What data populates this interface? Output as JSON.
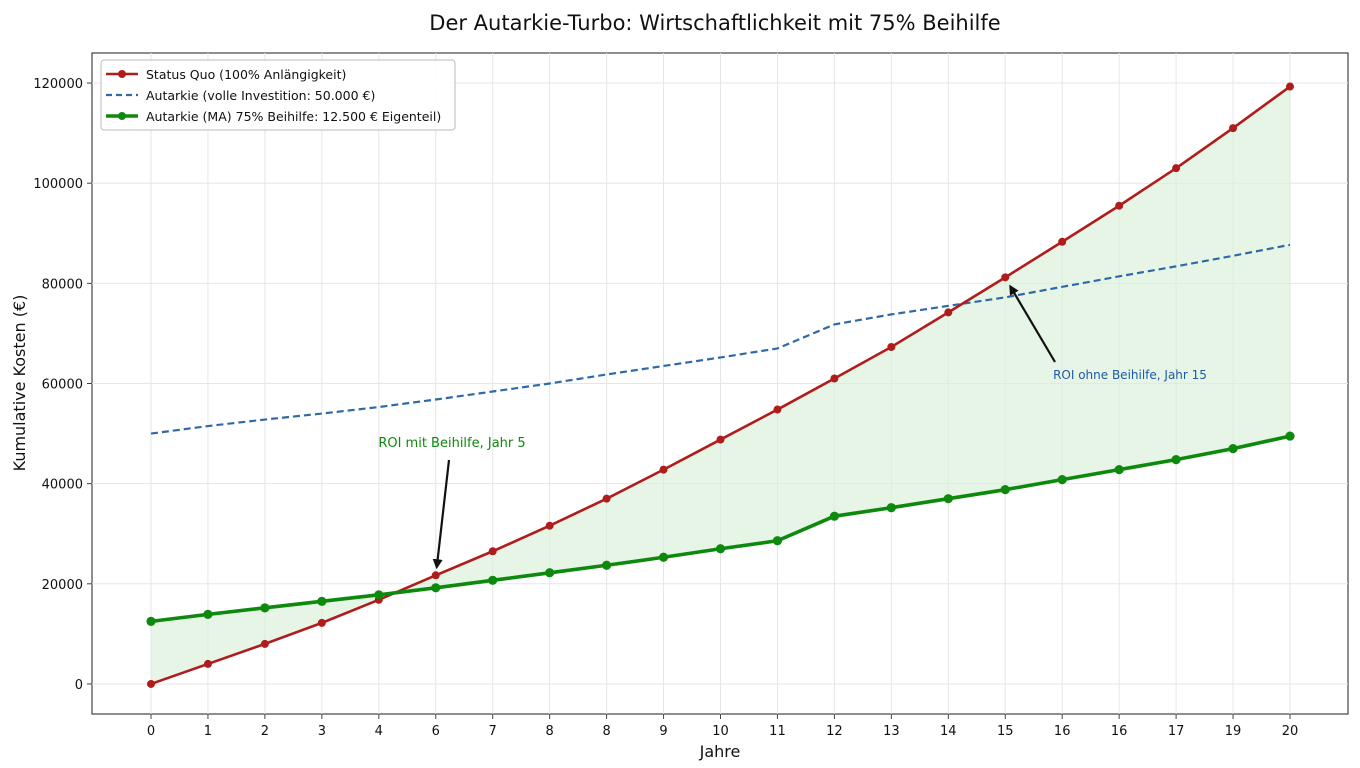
{
  "chart_data": {
    "type": "line",
    "title": "Der Autarkie-Turbo: Wirtschaftlichkeit mit 75% Beihilfe",
    "xlabel": "Jahre",
    "ylabel": "Kumulative Kosten (€)",
    "xlim": [
      0,
      20
    ],
    "ylim": [
      -6000,
      126000
    ],
    "x_tick_labels": [
      "0",
      "1",
      "2",
      "3",
      "4",
      "6",
      "7",
      "8",
      "8",
      "9",
      "10",
      "11",
      "12",
      "13",
      "14",
      "15",
      "16",
      "16",
      "17",
      "19",
      "20"
    ],
    "y_ticks": [
      0,
      20000,
      40000,
      60000,
      80000,
      100000,
      120000
    ],
    "grid": true,
    "legend_position": "top-left",
    "series": [
      {
        "name": "Status Quo (100% Anlängigkeit)",
        "color": "#b01c1c",
        "style": "solid-markers",
        "values": [
          0,
          4000,
          8000,
          12200,
          16800,
          21700,
          26500,
          31600,
          37000,
          42800,
          48800,
          54800,
          61000,
          67300,
          74200,
          81200,
          88300,
          95500,
          103000,
          111000,
          119300
        ]
      },
      {
        "name": "Autarkie (volle Investition: 50.000 €)",
        "color": "#2f6aa6",
        "style": "dashed",
        "values": [
          50000,
          51500,
          52800,
          54000,
          55300,
          56800,
          58400,
          60000,
          61800,
          63500,
          65200,
          67000,
          71800,
          73800,
          75500,
          77200,
          79300,
          81400,
          83400,
          85500,
          87700
        ]
      },
      {
        "name": "Autarkie (MA) 75% Beihilfe: 12.500 € Eigenteil)",
        "color": "#0d8a0d",
        "style": "solid-markers-thick",
        "values": [
          12500,
          13900,
          15200,
          16500,
          17800,
          19200,
          20700,
          22200,
          23700,
          25300,
          27000,
          28600,
          33500,
          35200,
          37000,
          38800,
          40800,
          42800,
          44800,
          47000,
          49500
        ]
      }
    ],
    "annotations": [
      {
        "text": "ROI mit Beihilfe, Jahr 5",
        "color": "#0d8a0d",
        "x": 5,
        "y": 21700
      },
      {
        "text": "ROI ohne Beihilfe, Jahr 15",
        "color": "#1f5aa6",
        "x": 15,
        "y": 81200
      }
    ],
    "shaded_area": {
      "between": [
        "Status Quo (100% Anlängigkeit)",
        "Autarkie (MA) 75% Beihilfe: 12.500 € Eigenteil)"
      ],
      "color": "#d8f0d8"
    }
  }
}
